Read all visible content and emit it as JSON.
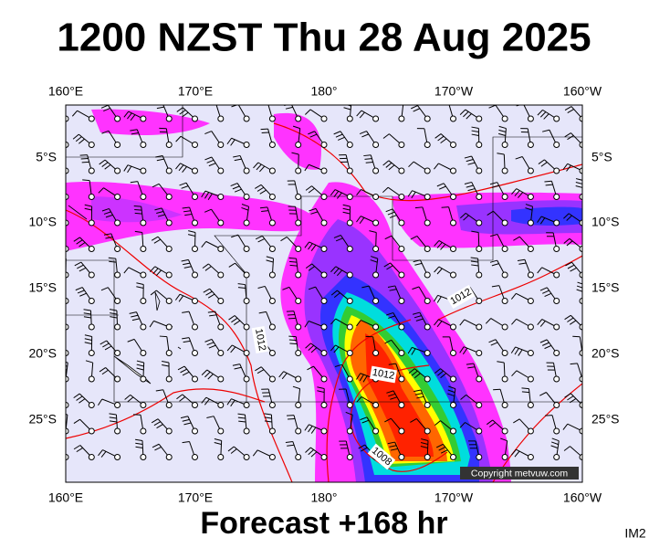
{
  "title": "1200 NZST Thu 28 Aug 2025",
  "footer": "Forecast +168 hr",
  "corner_label": "IM2",
  "copyright": "Copyright metvuw.com",
  "map": {
    "lon_labels": [
      "160°E",
      "170°E",
      "180°",
      "170°W",
      "160°W"
    ],
    "lat_labels": [
      "5°S",
      "10°S",
      "15°S",
      "20°S",
      "25°S"
    ],
    "isobar_labels": [
      "1012",
      "1012",
      "1012",
      "1008"
    ]
  }
}
